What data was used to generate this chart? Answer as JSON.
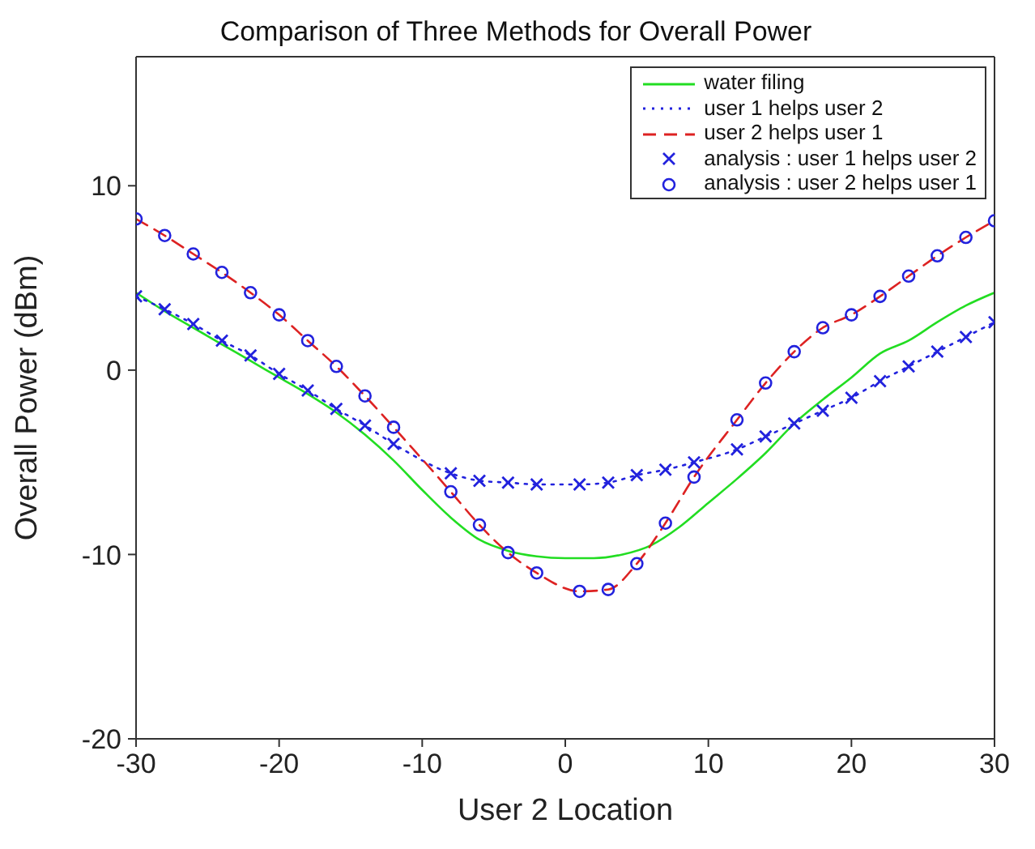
{
  "chart_data": {
    "type": "line",
    "title": "Comparison of Three Methods for Overall Power",
    "xlabel": "User 2 Location",
    "ylabel": "Overall Power (dBm)",
    "xlim": [
      -30,
      30
    ],
    "xticks": [
      -30,
      -20,
      -10,
      0,
      10,
      20,
      30
    ],
    "ylim": [
      -20,
      17
    ],
    "yticks": [
      -20,
      -10,
      0,
      10
    ],
    "legend": "top right",
    "series": [
      {
        "name": "water filing",
        "color": "#22dd22",
        "line_style": "solid",
        "marker": "none",
        "x": [
          -30,
          -28,
          -26,
          -24,
          -22,
          -20,
          -18,
          -16,
          -14,
          -12,
          -10,
          -8,
          -6,
          -4,
          -2,
          0,
          2,
          4,
          6,
          8,
          10,
          12,
          14,
          16,
          18,
          20,
          22,
          24,
          26,
          28,
          30
        ],
        "values": [
          4.2,
          3.2,
          2.3,
          1.4,
          0.5,
          -0.4,
          -1.3,
          -2.3,
          -3.5,
          -4.9,
          -6.5,
          -8.0,
          -9.2,
          -9.8,
          -10.1,
          -10.2,
          -10.2,
          -10.0,
          -9.5,
          -8.5,
          -7.2,
          -5.9,
          -4.5,
          -2.9,
          -1.6,
          -0.4,
          0.9,
          1.6,
          2.6,
          3.5,
          4.2
        ]
      },
      {
        "name": "user 1 helps user 2",
        "color": "#2222dd",
        "line_style": "dotted",
        "marker": "none",
        "x": [
          -30,
          -28,
          -26,
          -24,
          -22,
          -20,
          -18,
          -16,
          -14,
          -12,
          -8,
          -6,
          -4,
          -2,
          1,
          3,
          5,
          7,
          9,
          12,
          14,
          16,
          18,
          20,
          22,
          24,
          26,
          28,
          30
        ],
        "values": [
          4.0,
          3.3,
          2.5,
          1.6,
          0.8,
          -0.2,
          -1.1,
          -2.1,
          -3.0,
          -4.0,
          -5.6,
          -6.0,
          -6.1,
          -6.2,
          -6.2,
          -6.1,
          -5.7,
          -5.4,
          -5.0,
          -4.3,
          -3.6,
          -2.9,
          -2.2,
          -1.5,
          -0.6,
          0.2,
          1.0,
          1.8,
          2.6
        ]
      },
      {
        "name": "user 2 helps user 1",
        "color": "#dd2222",
        "line_style": "dashed",
        "marker": "none",
        "x": [
          -30,
          -28,
          -26,
          -24,
          -22,
          -20,
          -18,
          -16,
          -14,
          -12,
          -8,
          -6,
          -4,
          -2,
          1,
          3,
          5,
          7,
          9,
          12,
          14,
          16,
          18,
          20,
          22,
          24,
          26,
          28,
          30
        ],
        "values": [
          8.2,
          7.3,
          6.3,
          5.3,
          4.2,
          3.0,
          1.6,
          0.2,
          -1.4,
          -3.1,
          -6.6,
          -8.4,
          -9.9,
          -11.0,
          -12.0,
          -11.9,
          -10.5,
          -8.3,
          -5.8,
          -2.7,
          -0.7,
          1.0,
          2.3,
          3.0,
          4.0,
          5.1,
          6.2,
          7.2,
          8.1
        ]
      },
      {
        "name": "analysis : user 1 helps user 2",
        "type": "scatter",
        "color": "#2222dd",
        "marker": "cross",
        "x": [
          -30,
          -28,
          -26,
          -24,
          -22,
          -20,
          -18,
          -16,
          -14,
          -12,
          -8,
          -6,
          -4,
          -2,
          1,
          3,
          5,
          7,
          9,
          12,
          14,
          16,
          18,
          20,
          22,
          24,
          26,
          28,
          30
        ],
        "values": [
          4.0,
          3.3,
          2.5,
          1.6,
          0.8,
          -0.2,
          -1.1,
          -2.1,
          -3.0,
          -4.0,
          -5.6,
          -6.0,
          -6.1,
          -6.2,
          -6.2,
          -6.1,
          -5.7,
          -5.4,
          -5.0,
          -4.3,
          -3.6,
          -2.9,
          -2.2,
          -1.5,
          -0.6,
          0.2,
          1.0,
          1.8,
          2.6
        ]
      },
      {
        "name": "analysis : user 2 helps user 1",
        "type": "scatter",
        "color": "#2222dd",
        "marker": "circle",
        "x": [
          -30,
          -28,
          -26,
          -24,
          -22,
          -20,
          -18,
          -16,
          -14,
          -12,
          -8,
          -6,
          -4,
          -2,
          1,
          3,
          5,
          7,
          9,
          12,
          14,
          16,
          18,
          20,
          22,
          24,
          26,
          28,
          30
        ],
        "values": [
          8.2,
          7.3,
          6.3,
          5.3,
          4.2,
          3.0,
          1.6,
          0.2,
          -1.4,
          -3.1,
          -6.6,
          -8.4,
          -9.9,
          -11.0,
          -12.0,
          -11.9,
          -10.5,
          -8.3,
          -5.8,
          -2.7,
          -0.7,
          1.0,
          2.3,
          3.0,
          4.0,
          5.1,
          6.2,
          7.2,
          8.1
        ]
      }
    ]
  }
}
